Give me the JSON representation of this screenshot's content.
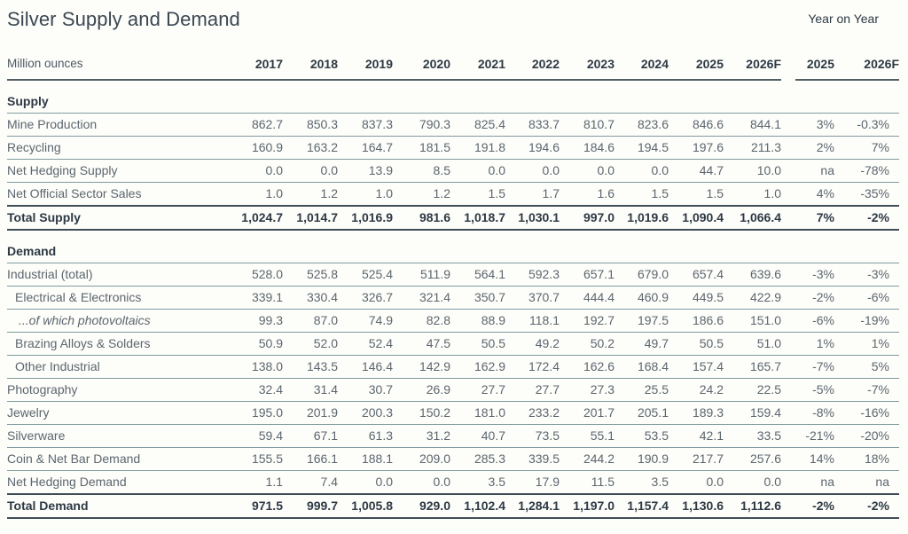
{
  "page": {
    "title": "Silver Supply and Demand",
    "yoy_header": "Year on Year",
    "unit_label": "Million ounces"
  },
  "colors": {
    "background": "#fdfdfa",
    "heading_text": "#3b4751",
    "dark_text": "#2d3943",
    "body_text": "#5c666e",
    "light_rule": "#819ba0",
    "dark_rule": "#414d56"
  },
  "chart_data": {
    "type": "table",
    "title": "Silver Supply and Demand",
    "unit": "Million ounces",
    "year_columns": [
      "2017",
      "2018",
      "2019",
      "2020",
      "2021",
      "2022",
      "2023",
      "2024",
      "2025",
      "2026F"
    ],
    "yoy_columns": [
      "2025",
      "2026F"
    ],
    "sections": [
      {
        "name": "Supply",
        "rows": [
          {
            "label": "Mine Production",
            "indent": 0,
            "italic": false,
            "values": [
              "862.7",
              "850.3",
              "837.3",
              "790.3",
              "825.4",
              "833.7",
              "810.7",
              "823.6",
              "846.6",
              "844.1"
            ],
            "yoy": [
              "3%",
              "-0.3%"
            ]
          },
          {
            "label": "Recycling",
            "indent": 0,
            "italic": false,
            "values": [
              "160.9",
              "163.2",
              "164.7",
              "181.5",
              "191.8",
              "194.6",
              "184.6",
              "194.5",
              "197.6",
              "211.3"
            ],
            "yoy": [
              "2%",
              "7%"
            ]
          },
          {
            "label": "Net Hedging Supply",
            "indent": 0,
            "italic": false,
            "values": [
              "0.0",
              "0.0",
              "13.9",
              "8.5",
              "0.0",
              "0.0",
              "0.0",
              "0.0",
              "44.7",
              "10.0"
            ],
            "yoy": [
              "na",
              "-78%"
            ]
          },
          {
            "label": "Net Official Sector Sales",
            "indent": 0,
            "italic": false,
            "values": [
              "1.0",
              "1.2",
              "1.0",
              "1.2",
              "1.5",
              "1.7",
              "1.6",
              "1.5",
              "1.5",
              "1.0"
            ],
            "yoy": [
              "4%",
              "-35%"
            ]
          }
        ],
        "total": {
          "label": "Total Supply",
          "values": [
            "1,024.7",
            "1,014.7",
            "1,016.9",
            "981.6",
            "1,018.7",
            "1,030.1",
            "997.0",
            "1,019.6",
            "1,090.4",
            "1,066.4"
          ],
          "yoy": [
            "7%",
            "-2%"
          ]
        }
      },
      {
        "name": "Demand",
        "rows": [
          {
            "label": "Industrial (total)",
            "indent": 0,
            "italic": false,
            "values": [
              "528.0",
              "525.8",
              "525.4",
              "511.9",
              "564.1",
              "592.3",
              "657.1",
              "679.0",
              "657.4",
              "639.6"
            ],
            "yoy": [
              "-3%",
              "-3%"
            ]
          },
          {
            "label": "Electrical & Electronics",
            "indent": 1,
            "italic": false,
            "values": [
              "339.1",
              "330.4",
              "326.7",
              "321.4",
              "350.7",
              "370.7",
              "444.4",
              "460.9",
              "449.5",
              "422.9"
            ],
            "yoy": [
              "-2%",
              "-6%"
            ]
          },
          {
            "label": "...of which photovoltaics",
            "indent": 2,
            "italic": true,
            "values": [
              "99.3",
              "87.0",
              "74.9",
              "82.8",
              "88.9",
              "118.1",
              "192.7",
              "197.5",
              "186.6",
              "151.0"
            ],
            "yoy": [
              "-6%",
              "-19%"
            ]
          },
          {
            "label": "Brazing Alloys & Solders",
            "indent": 1,
            "italic": false,
            "values": [
              "50.9",
              "52.0",
              "52.4",
              "47.5",
              "50.5",
              "49.2",
              "50.2",
              "49.7",
              "50.5",
              "51.0"
            ],
            "yoy": [
              "1%",
              "1%"
            ]
          },
          {
            "label": "Other Industrial",
            "indent": 1,
            "italic": false,
            "values": [
              "138.0",
              "143.5",
              "146.4",
              "142.9",
              "162.9",
              "172.4",
              "162.6",
              "168.4",
              "157.4",
              "165.7"
            ],
            "yoy": [
              "-7%",
              "5%"
            ]
          },
          {
            "label": "Photography",
            "indent": 0,
            "italic": false,
            "values": [
              "32.4",
              "31.4",
              "30.7",
              "26.9",
              "27.7",
              "27.7",
              "27.3",
              "25.5",
              "24.2",
              "22.5"
            ],
            "yoy": [
              "-5%",
              "-7%"
            ]
          },
          {
            "label": "Jewelry",
            "indent": 0,
            "italic": false,
            "values": [
              "195.0",
              "201.9",
              "200.3",
              "150.2",
              "181.0",
              "233.2",
              "201.7",
              "205.1",
              "189.3",
              "159.4"
            ],
            "yoy": [
              "-8%",
              "-16%"
            ]
          },
          {
            "label": "Silverware",
            "indent": 0,
            "italic": false,
            "values": [
              "59.4",
              "67.1",
              "61.3",
              "31.2",
              "40.7",
              "73.5",
              "55.1",
              "53.5",
              "42.1",
              "33.5"
            ],
            "yoy": [
              "-21%",
              "-20%"
            ]
          },
          {
            "label": "Coin & Net Bar Demand",
            "indent": 0,
            "italic": false,
            "values": [
              "155.5",
              "166.1",
              "188.1",
              "209.0",
              "285.3",
              "339.5",
              "244.2",
              "190.9",
              "217.7",
              "257.6"
            ],
            "yoy": [
              "14%",
              "18%"
            ]
          },
          {
            "label": "Net Hedging Demand",
            "indent": 0,
            "italic": false,
            "values": [
              "1.1",
              "7.4",
              "0.0",
              "0.0",
              "3.5",
              "17.9",
              "11.5",
              "3.5",
              "0.0",
              "0.0"
            ],
            "yoy": [
              "na",
              "na"
            ]
          }
        ],
        "total": {
          "label": "Total Demand",
          "values": [
            "971.5",
            "999.7",
            "1,005.8",
            "929.0",
            "1,102.4",
            "1,284.1",
            "1,197.0",
            "1,157.4",
            "1,130.6",
            "1,112.6"
          ],
          "yoy": [
            "-2%",
            "-2%"
          ]
        }
      }
    ]
  }
}
